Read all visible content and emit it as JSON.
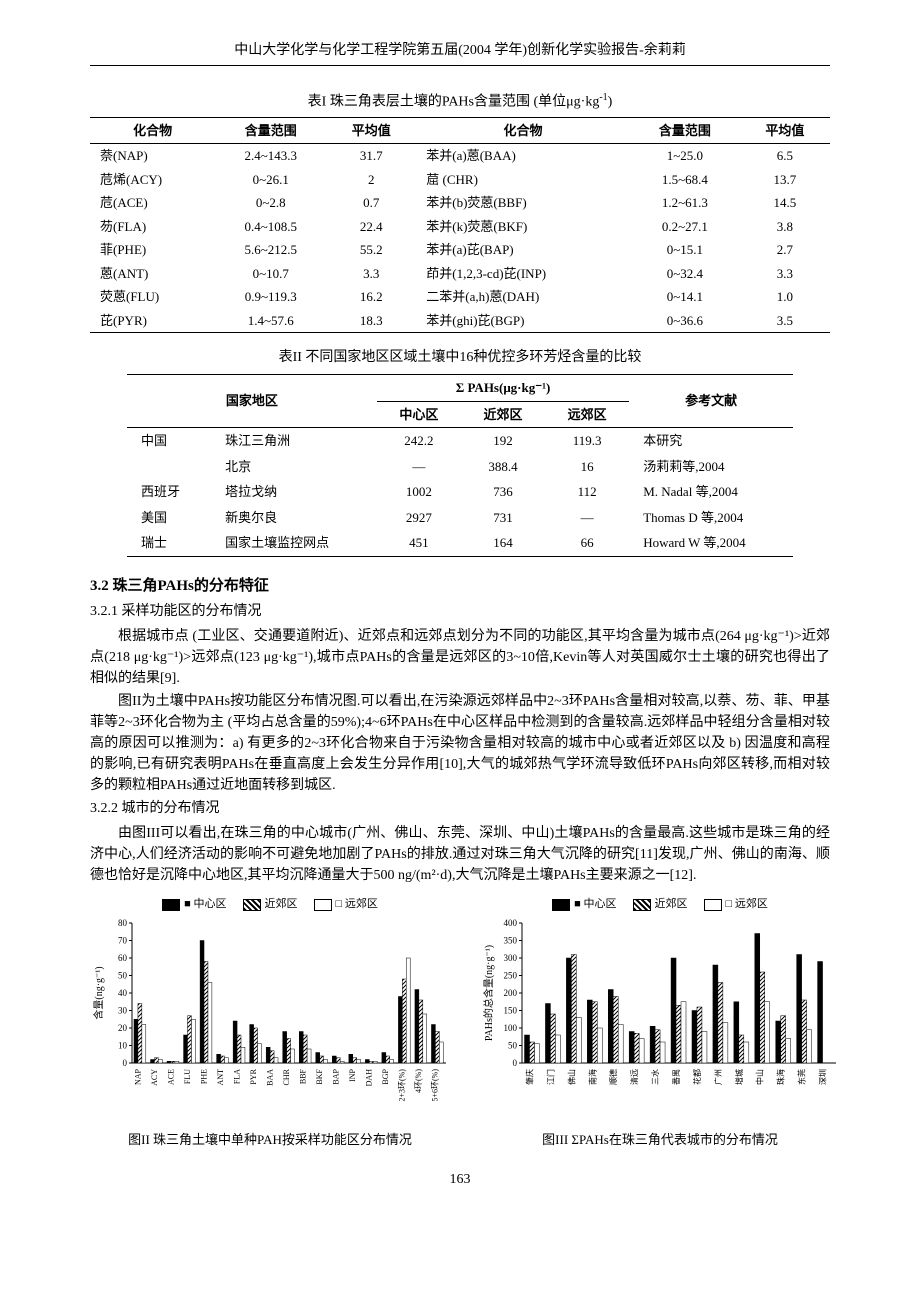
{
  "header": "中山大学化学与化学工程学院第五届(2004 学年)创新化学实验报告-余莉莉",
  "table1": {
    "caption_prefix": "表I   珠三角表层土壤的PAHs含量范围  (单位μg·kg",
    "caption_suffix": ")",
    "headers": [
      "化合物",
      "含量范围",
      "平均值",
      "化合物",
      "含量范围",
      "平均值"
    ],
    "rows": [
      [
        "萘(NAP)",
        "2.4~143.3",
        "31.7",
        "苯并(a)蒽(BAA)",
        "1~25.0",
        "6.5"
      ],
      [
        "苊烯(ACY)",
        "0~26.1",
        "2",
        "䓛 (CHR)",
        "1.5~68.4",
        "13.7"
      ],
      [
        "苊(ACE)",
        "0~2.8",
        "0.7",
        "苯并(b)荧蒽(BBF)",
        "1.2~61.3",
        "14.5"
      ],
      [
        "芴(FLA)",
        "0.4~108.5",
        "22.4",
        "苯并(k)荧蒽(BKF)",
        "0.2~27.1",
        "3.8"
      ],
      [
        "菲(PHE)",
        "5.6~212.5",
        "55.2",
        "苯并(a)芘(BAP)",
        "0~15.1",
        "2.7"
      ],
      [
        "蒽(ANT)",
        "0~10.7",
        "3.3",
        "茚并(1,2,3-cd)芘(INP)",
        "0~32.4",
        "3.3"
      ],
      [
        "荧蒽(FLU)",
        "0.9~119.3",
        "16.2",
        "二苯并(a,h)蒽(DAH)",
        "0~14.1",
        "1.0"
      ],
      [
        "芘(PYR)",
        "1.4~57.6",
        "18.3",
        "苯并(ghi)芘(BGP)",
        "0~36.6",
        "3.5"
      ]
    ]
  },
  "table2": {
    "caption": "表II   不同国家地区区域土壤中16种优控多环芳烃含量的比较",
    "header_top": "Σ PAHs(μg·kg⁻¹)",
    "sub_headers": [
      "国家地区",
      "",
      "中心区",
      "近郊区",
      "远郊区",
      "参考文献"
    ],
    "rows": [
      [
        "中国",
        "珠江三角洲",
        "242.2",
        "192",
        "119.3",
        "本研究"
      ],
      [
        "",
        "北京",
        "—",
        "388.4",
        "16",
        "汤莉莉等,2004"
      ],
      [
        "西班牙",
        "塔拉戈纳",
        "1002",
        "736",
        "112",
        "M. Nadal 等,2004"
      ],
      [
        "美国",
        "新奥尔良",
        "2927",
        "731",
        "—",
        "Thomas D 等,2004"
      ],
      [
        "瑞士",
        "国家土壤监控网点",
        "451",
        "164",
        "66",
        "Howard W 等,2004"
      ]
    ]
  },
  "section32_title": "3.2   珠三角PAHs的分布特征",
  "section321_title": "3.2.1   采样功能区的分布情况",
  "para1": "根据城市点 (工业区、交通要道附近)、近郊点和远郊点划分为不同的功能区,其平均含量为城市点(264 μg·kg⁻¹)>近郊点(218 μg·kg⁻¹)>远郊点(123 μg·kg⁻¹),城市点PAHs的含量是远郊区的3~10倍,Kevin等人对英国威尔士土壤的研究也得出了相似的结果[9].",
  "para2": "图II为土壤中PAHs按功能区分布情况图.可以看出,在污染源远郊样品中2~3环PAHs含量相对较高,以萘、芴、菲、甲基菲等2~3环化合物为主 (平均占总含量的59%);4~6环PAHs在中心区样品中检测到的含量较高.远郊样品中轻组分含量相对较高的原因可以推测为：a) 有更多的2~3环化合物来自于污染物含量相对较高的城市中心或者近郊区以及 b) 因温度和高程的影响,已有研究表明PAHs在垂直高度上会发生分异作用[10],大气的城郊热气学环流导致低环PAHs向郊区转移,而相对较多的颗粒相PAHs通过近地面转移到城区.",
  "section322_title": "3.2.2   城市的分布情况",
  "para3": "由图III可以看出,在珠三角的中心城市(广州、佛山、东莞、深圳、中山)土壤PAHs的含量最高.这些城市是珠三角的经济中心,人们经济活动的影响不可避免地加剧了PAHs的排放.通过对珠三角大气沉降的研究[11]发现,广州、佛山的南海、顺德也恰好是沉降中心地区,其平均沉降通量大于500 ng/(m²·d),大气沉降是土壤PAHs主要来源之一[12].",
  "legend": {
    "a": "中心区",
    "b": "近郊区",
    "c": "远郊区"
  },
  "chart2": {
    "type": "bar",
    "ylabel": "含量(ng·g⁻¹)",
    "ylim": [
      0,
      80
    ],
    "ytick_step": 10,
    "categories": [
      "NAP",
      "ACY",
      "ACE",
      "FLU",
      "PHE",
      "ANT",
      "FLA",
      "PYR",
      "BAA",
      "CHR",
      "BBF",
      "BKF",
      "BAP",
      "INP",
      "DAH",
      "BGP",
      "2+3环(%)",
      "4环(%)",
      "5+6环(%)"
    ],
    "series": [
      {
        "name": "中心区",
        "color": "#000",
        "values": [
          25,
          2,
          1,
          16,
          70,
          5,
          24,
          22,
          9,
          18,
          18,
          6,
          4,
          5,
          2,
          6,
          38,
          42,
          22
        ]
      },
      {
        "name": "近郊区",
        "pattern": "hatch",
        "values": [
          34,
          3,
          1,
          27,
          58,
          4,
          16,
          20,
          7,
          14,
          16,
          4,
          3,
          3,
          1,
          4,
          48,
          36,
          18
        ]
      },
      {
        "name": "远郊区",
        "color": "#fff",
        "values": [
          22,
          2,
          1,
          25,
          46,
          3,
          9,
          11,
          3,
          8,
          8,
          2,
          1,
          2,
          1,
          2,
          60,
          28,
          12
        ]
      }
    ],
    "caption": "图II   珠三角土壤中单种PAH按采样功能区分布情况"
  },
  "chart3": {
    "type": "bar",
    "ylabel": "PAHs的总含量(ng·g⁻¹)",
    "ylim": [
      0,
      400
    ],
    "ytick_step": 50,
    "categories": [
      "肇庆",
      "江门",
      "佛山",
      "南海",
      "顺德",
      "清远",
      "三水",
      "番禺",
      "花都",
      "广州",
      "增城",
      "中山",
      "珠海",
      "东莞",
      "深圳"
    ],
    "series": [
      {
        "name": "中心区",
        "color": "#000",
        "values": [
          80,
          170,
          300,
          180,
          210,
          90,
          105,
          300,
          150,
          280,
          175,
          370,
          120,
          310,
          290
        ]
      },
      {
        "name": "近郊区",
        "pattern": "hatch",
        "values": [
          60,
          140,
          310,
          175,
          190,
          85,
          95,
          165,
          160,
          230,
          80,
          260,
          135,
          180,
          0
        ]
      },
      {
        "name": "远郊区",
        "color": "#fff",
        "values": [
          55,
          80,
          130,
          100,
          110,
          70,
          60,
          175,
          90,
          115,
          60,
          175,
          70,
          95,
          0
        ]
      }
    ],
    "caption": "图III   ΣPAHs在珠三角代表城市的分布情况"
  },
  "page_number": "163",
  "style": {
    "font_main": "SimSun",
    "font_size_body": 14,
    "color_text": "#000000",
    "color_bg": "#ffffff",
    "grid_color": "#888888",
    "bar_colors": {
      "center": "#000000",
      "suburb_hatch": [
        "#000000",
        "#ffffff"
      ],
      "outer": "#ffffff"
    }
  }
}
